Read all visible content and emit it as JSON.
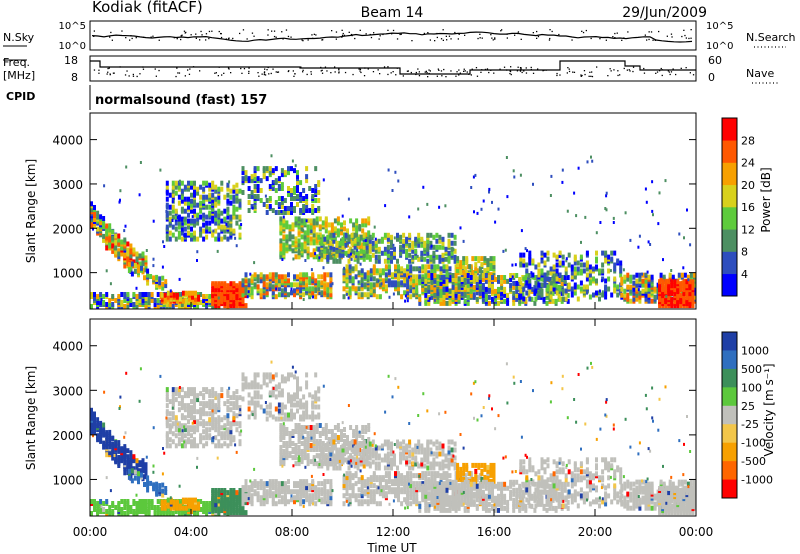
{
  "header": {
    "station": "Kodiak (fitACF)",
    "beam": "Beam 14",
    "date": "29/Jun/2009"
  },
  "strip_noise": {
    "left_label": "N.Sky",
    "right_label": "N.Search",
    "left_ticks": [
      "10^5",
      "10^0"
    ],
    "right_ticks": [
      "10^5",
      "10^0"
    ]
  },
  "strip_freq": {
    "left_label_1": "Freq.",
    "left_label_2": "[MHz]",
    "left_ticks": [
      "18",
      "8"
    ],
    "right_label": "Nave",
    "right_ticks": [
      "60",
      "0"
    ]
  },
  "cpid": {
    "label": "CPID",
    "value": "normalsound (fast) 157"
  },
  "chart_data": [
    {
      "type": "heatmap",
      "name": "power",
      "ylabel": "Slant Range [km]",
      "ylim": [
        180,
        4600
      ],
      "yticks": [
        "1000",
        "2000",
        "3000",
        "4000"
      ],
      "yticks_values": [
        1000,
        2000,
        3000,
        4000
      ],
      "xlim_hours": [
        0,
        24
      ],
      "colorbar": {
        "label": "Power [dB]",
        "ticks": [
          "4",
          "8",
          "12",
          "16",
          "20",
          "24",
          "28"
        ],
        "tick_values": [
          4,
          8,
          12,
          16,
          20,
          24,
          28
        ],
        "range": [
          0,
          32
        ],
        "colors": [
          "#0000ff",
          "#2e4ebe",
          "#4d8f62",
          "#5ecb3c",
          "#d8d11c",
          "#f7a000",
          "#ff5800",
          "#ff0000"
        ]
      }
    },
    {
      "type": "heatmap",
      "name": "velocity",
      "ylabel": "Slant Range [km]",
      "ylim": [
        180,
        4600
      ],
      "yticks": [
        "1000",
        "2000",
        "3000",
        "4000"
      ],
      "yticks_values": [
        1000,
        2000,
        3000,
        4000
      ],
      "xlim_hours": [
        0,
        24
      ],
      "colorbar": {
        "label": "Velocity [m s⁻¹]",
        "ticks": [
          "1000",
          "500",
          "100",
          "25",
          "-25",
          "-100",
          "-500",
          "-1000"
        ],
        "colors": [
          "#1f3fa6",
          "#2f6fbf",
          "#3c8f5a",
          "#5cc83c",
          "#c0c0bb",
          "#f3c64a",
          "#f7a000",
          "#ff6600",
          "#ff0000"
        ]
      }
    }
  ],
  "x_axis": {
    "ticks": [
      "00:00",
      "04:00",
      "08:00",
      "12:00",
      "16:00",
      "20:00",
      "00:00"
    ],
    "tick_hours": [
      0,
      4,
      8,
      12,
      16,
      20,
      24
    ],
    "label": "Time UT"
  }
}
